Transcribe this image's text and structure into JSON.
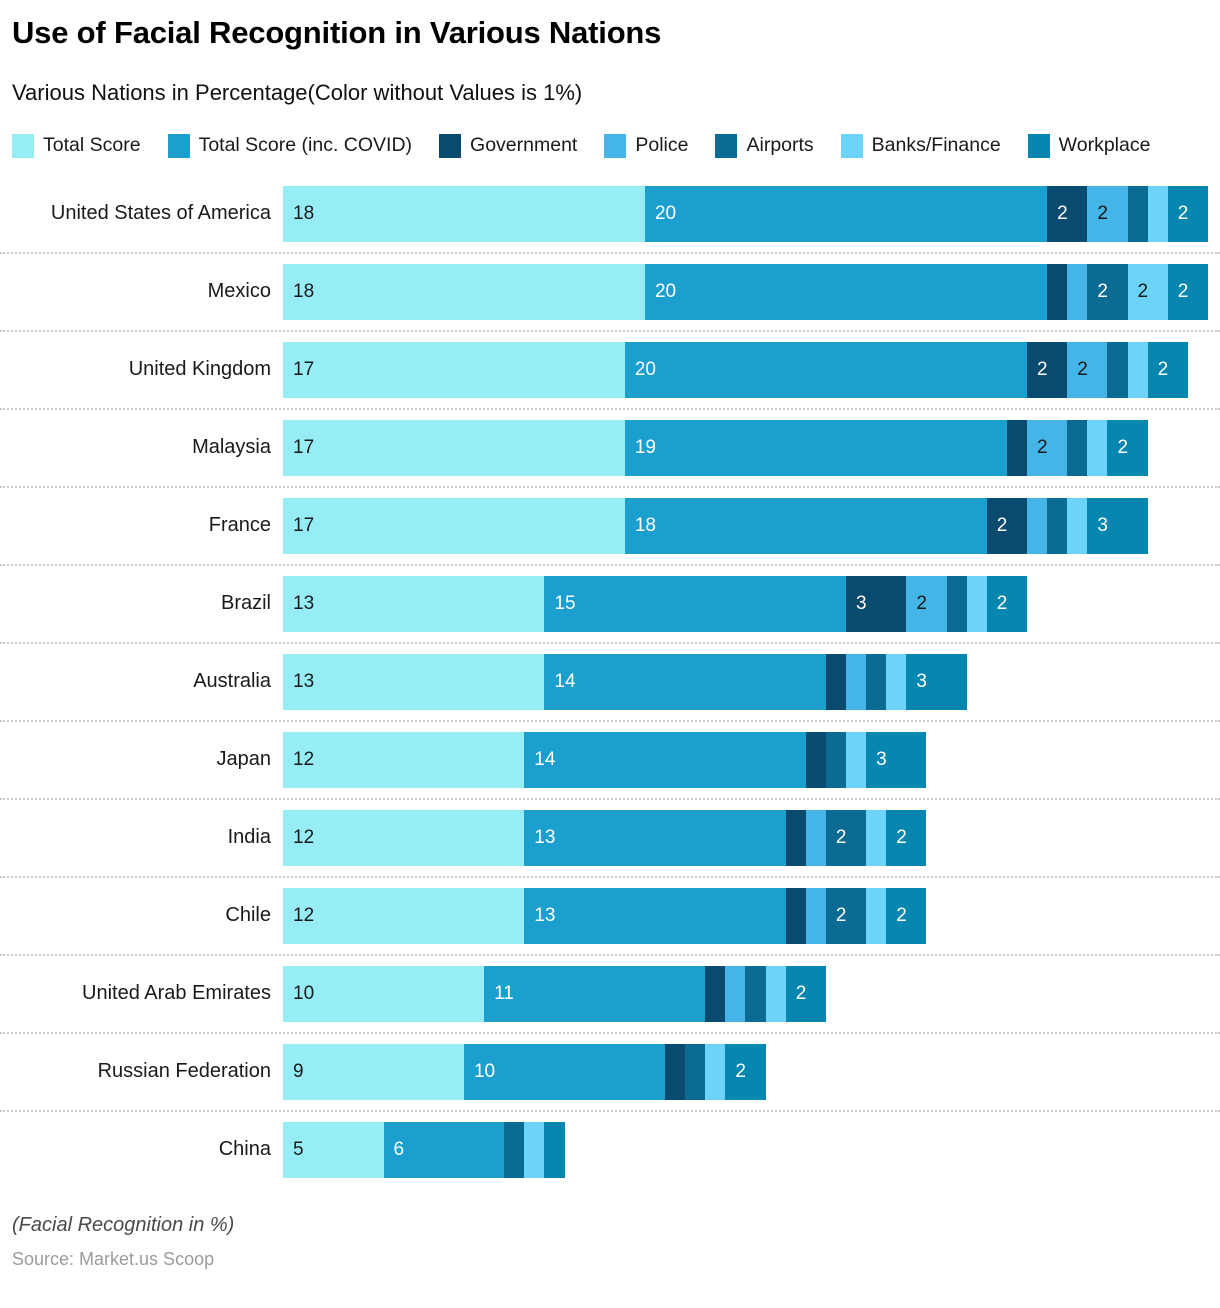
{
  "header": {
    "title": "Use of Facial Recognition in Various Nations",
    "subtitle": "Various Nations in Percentage(Color without Values is 1%)"
  },
  "chart_data": {
    "type": "bar",
    "orientation": "horizontal",
    "stacked": true,
    "grid": false,
    "legend_position": "top",
    "value_label_rule": "segments with value >= 2 show the number; value 1 is color only; value 0 omitted",
    "x_range": [
      0,
      46
    ],
    "categories": [
      "United States of America",
      "Mexico",
      "United Kingdom",
      "Malaysia",
      "France",
      "Brazil",
      "Australia",
      "Japan",
      "India",
      "Chile",
      "United Arab Emirates",
      "Russian Federation",
      "China"
    ],
    "series": [
      {
        "name": "Total Score",
        "color": "#97edf6",
        "label_color": "#1a1a1a",
        "values": [
          18,
          18,
          17,
          17,
          17,
          13,
          13,
          12,
          12,
          12,
          10,
          9,
          5
        ]
      },
      {
        "name": "Total Score (inc. COVID)",
        "color": "#1b9fce",
        "label_color": "#ffffff",
        "values": [
          20,
          20,
          20,
          19,
          18,
          15,
          14,
          14,
          13,
          13,
          11,
          10,
          6
        ]
      },
      {
        "name": "Government",
        "color": "#0a4a6f",
        "label_color": "#ffffff",
        "values": [
          2,
          1,
          2,
          1,
          2,
          3,
          1,
          1,
          1,
          1,
          1,
          1,
          0
        ]
      },
      {
        "name": "Police",
        "color": "#45b4e6",
        "label_color": "#1a1a1a",
        "values": [
          2,
          1,
          2,
          2,
          1,
          2,
          1,
          0,
          1,
          1,
          1,
          0,
          0
        ]
      },
      {
        "name": "Airports",
        "color": "#0b6b93",
        "label_color": "#ffffff",
        "values": [
          1,
          2,
          1,
          1,
          1,
          1,
          1,
          1,
          2,
          2,
          1,
          1,
          1
        ]
      },
      {
        "name": "Banks/Finance",
        "color": "#6cd4f9",
        "label_color": "#1a1a1a",
        "values": [
          1,
          2,
          1,
          1,
          1,
          1,
          1,
          1,
          1,
          1,
          1,
          1,
          1
        ]
      },
      {
        "name": "Workplace",
        "color": "#0787b0",
        "label_color": "#ffffff",
        "values": [
          2,
          2,
          2,
          2,
          3,
          2,
          3,
          3,
          2,
          2,
          2,
          2,
          1
        ]
      }
    ],
    "totals": [
      46,
      46,
      45,
      43,
      43,
      37,
      34,
      32,
      32,
      32,
      27,
      24,
      14
    ]
  },
  "footer": {
    "note": "(Facial Recognition in %)",
    "source": "Source: Market.us Scoop"
  }
}
